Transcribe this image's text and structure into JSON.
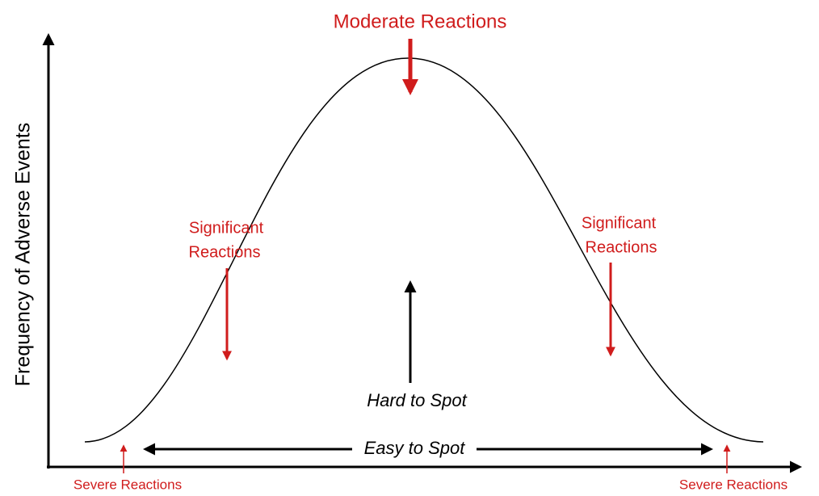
{
  "axis": {
    "y_label": "Frequency of Adverse Events"
  },
  "annotations": {
    "moderate": "Moderate Reactions",
    "significant_left": [
      "Significant",
      "Reactions"
    ],
    "significant_right": [
      "Significant",
      "Reactions"
    ],
    "hard_to_spot": "Hard to Spot",
    "easy_to_spot": "Easy to Spot",
    "severe_left": "Severe Reactions",
    "severe_right": "Severe Reactions"
  }
}
